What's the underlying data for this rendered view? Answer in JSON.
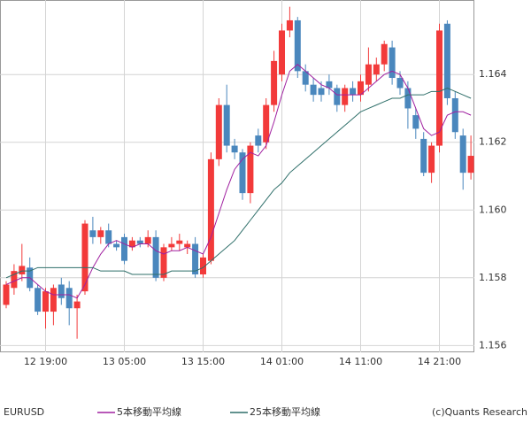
{
  "chart_data": {
    "type": "candlestick",
    "symbol": "EURUSD",
    "credit": "(c)Quants Research",
    "categories": [
      null,
      null,
      null,
      null,
      null,
      "12 19:00",
      null,
      null,
      null,
      null,
      null,
      null,
      null,
      null,
      null,
      "13 05:00",
      null,
      null,
      null,
      null,
      null,
      null,
      null,
      null,
      null,
      "13 15:00",
      null,
      null,
      null,
      null,
      null,
      null,
      null,
      null,
      null,
      "14 01:00",
      null,
      null,
      null,
      null,
      null,
      null,
      null,
      null,
      null,
      "14 11:00",
      null,
      null,
      null,
      null,
      null,
      null,
      null,
      null,
      null,
      "14 21:00",
      null,
      null,
      null,
      null
    ],
    "open": [
      1.1572,
      1.1577,
      1.1581,
      1.1583,
      1.1577,
      1.157,
      1.157,
      1.1578,
      1.1577,
      1.1571,
      1.1576,
      1.1594,
      1.1592,
      1.1594,
      1.159,
      1.1592,
      1.1589,
      1.1591,
      1.159,
      1.1592,
      1.158,
      1.1589,
      1.159,
      1.1589,
      1.159,
      1.1581,
      1.1585,
      1.1615,
      1.1631,
      1.1619,
      1.1617,
      1.1605,
      1.1622,
      1.162,
      1.1631,
      1.164,
      1.1653,
      1.1656,
      1.1641,
      1.1637,
      1.1636,
      1.1638,
      1.1636,
      1.1631,
      1.1636,
      1.1634,
      1.1637,
      1.164,
      1.1643,
      1.1648,
      1.1639,
      1.1636,
      1.1628,
      1.1621,
      1.1611,
      1.1619,
      1.1655,
      1.1633,
      1.1622,
      1.1611
    ],
    "high": [
      1.1579,
      1.1584,
      1.159,
      1.1586,
      1.1578,
      1.1577,
      1.1578,
      1.158,
      1.1579,
      1.1575,
      1.1597,
      1.1598,
      1.1595,
      1.1596,
      1.1591,
      1.1593,
      1.1592,
      1.1592,
      1.1594,
      1.1594,
      1.159,
      1.1592,
      1.1593,
      1.1591,
      1.1592,
      1.1587,
      1.1617,
      1.1633,
      1.1637,
      1.1621,
      1.1618,
      1.162,
      1.1624,
      1.1633,
      1.1647,
      1.1655,
      1.166,
      1.1657,
      1.1643,
      1.1639,
      1.1638,
      1.164,
      1.1637,
      1.1637,
      1.1638,
      1.164,
      1.1648,
      1.1645,
      1.165,
      1.165,
      1.1641,
      1.1638,
      1.163,
      1.1623,
      1.162,
      1.1655,
      1.1656,
      1.1635,
      1.1624,
      1.1622
    ],
    "low": [
      1.1571,
      1.1575,
      1.1579,
      1.1576,
      1.1569,
      1.1565,
      1.1566,
      1.1572,
      1.1566,
      1.1562,
      1.1575,
      1.159,
      1.159,
      1.1589,
      1.1588,
      1.1584,
      1.1588,
      1.1589,
      1.1589,
      1.1579,
      1.1579,
      1.1588,
      1.1588,
      1.1587,
      1.158,
      1.158,
      1.1584,
      1.1613,
      1.1617,
      1.1615,
      1.1603,
      1.1602,
      1.1617,
      1.1618,
      1.1629,
      1.1638,
      1.1651,
      1.1639,
      1.1635,
      1.1632,
      1.1632,
      1.1634,
      1.1629,
      1.1629,
      1.1632,
      1.1632,
      1.1635,
      1.1638,
      1.1641,
      1.1637,
      1.1634,
      1.1624,
      1.1621,
      1.161,
      1.1608,
      1.1617,
      1.1631,
      1.1621,
      1.1606,
      1.1609
    ],
    "close": [
      1.1578,
      1.1582,
      1.15835,
      1.1577,
      1.157,
      1.1576,
      1.1577,
      1.1574,
      1.1571,
      1.1573,
      1.1596,
      1.1592,
      1.1594,
      1.159,
      1.1589,
      1.1585,
      1.1591,
      1.159,
      1.1592,
      1.158,
      1.1589,
      1.159,
      1.1591,
      1.159,
      1.1581,
      1.1586,
      1.1615,
      1.1631,
      1.1619,
      1.1617,
      1.1605,
      1.1619,
      1.1619,
      1.1631,
      1.1644,
      1.1653,
      1.1656,
      1.1641,
      1.1637,
      1.1634,
      1.1634,
      1.1636,
      1.1631,
      1.1636,
      1.1634,
      1.1638,
      1.1643,
      1.1643,
      1.1649,
      1.1639,
      1.1636,
      1.163,
      1.1624,
      1.1611,
      1.1619,
      1.1653,
      1.1633,
      1.1623,
      1.1611,
      1.1616
    ],
    "up_color": "#f23a3a",
    "down_color": "#4a87bd",
    "series": [
      {
        "name": "5本移動平均線",
        "color": "#a020a0",
        "values": [
          1.1578,
          1.1579,
          1.158,
          1.158,
          1.1578,
          1.1576,
          1.1575,
          1.1575,
          1.1575,
          1.1574,
          1.1578,
          1.1583,
          1.1587,
          1.159,
          1.1591,
          1.159,
          1.1589,
          1.159,
          1.159,
          1.1588,
          1.1587,
          1.1588,
          1.1588,
          1.1589,
          1.1588,
          1.1587,
          1.1592,
          1.1599,
          1.1606,
          1.1612,
          1.1615,
          1.1617,
          1.1616,
          1.1619,
          1.1626,
          1.1634,
          1.1641,
          1.1643,
          1.1641,
          1.1639,
          1.1637,
          1.1636,
          1.1634,
          1.1634,
          1.1634,
          1.1634,
          1.1636,
          1.1638,
          1.164,
          1.1641,
          1.164,
          1.1636,
          1.163,
          1.1624,
          1.1622,
          1.1623,
          1.1628,
          1.1629,
          1.1629,
          1.1628
        ]
      },
      {
        "name": "25本移動平均線",
        "color": "#2f6f6a",
        "values": [
          1.158,
          1.1581,
          1.1582,
          1.1582,
          1.1583,
          1.1583,
          1.1583,
          1.1583,
          1.1583,
          1.1583,
          1.1583,
          1.1583,
          1.1582,
          1.1582,
          1.1582,
          1.1582,
          1.1581,
          1.1581,
          1.1581,
          1.1581,
          1.1581,
          1.1582,
          1.1582,
          1.1582,
          1.1582,
          1.1583,
          1.1585,
          1.1587,
          1.1589,
          1.1591,
          1.1594,
          1.1597,
          1.16,
          1.1603,
          1.1606,
          1.1608,
          1.1611,
          1.1613,
          1.1615,
          1.1617,
          1.1619,
          1.1621,
          1.1623,
          1.1625,
          1.1627,
          1.1629,
          1.163,
          1.1631,
          1.1632,
          1.1633,
          1.1633,
          1.1634,
          1.1634,
          1.1634,
          1.1635,
          1.1635,
          1.1636,
          1.1635,
          1.1634,
          1.1633
        ]
      }
    ],
    "ylim": [
      1.1558,
      1.1662
    ],
    "yticks": [
      1.156,
      1.158,
      {
        "value": 1.16,
        "label": "1.160"
      },
      1.162,
      1.164
    ],
    "grid": true
  }
}
